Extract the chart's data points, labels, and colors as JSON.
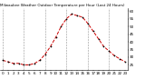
{
  "title": "Milwaukee Weather Outdoor Temperature per Hour (Last 24 Hours)",
  "hours": [
    0,
    1,
    2,
    3,
    4,
    5,
    6,
    7,
    8,
    9,
    10,
    11,
    12,
    13,
    14,
    15,
    16,
    17,
    18,
    19,
    20,
    21,
    22,
    23
  ],
  "temps": [
    28,
    27,
    26,
    26,
    25,
    25,
    26,
    28,
    32,
    37,
    43,
    50,
    55,
    58,
    57,
    56,
    52,
    47,
    42,
    37,
    34,
    31,
    29,
    27
  ],
  "line_color": "#cc0000",
  "marker_color": "#000000",
  "bg_color": "#ffffff",
  "grid_color": "#888888",
  "ylim_min": 22,
  "ylim_max": 62,
  "yticks": [
    25,
    30,
    35,
    40,
    45,
    50,
    55,
    60
  ],
  "title_fontsize": 3.0,
  "tick_fontsize": 3.0,
  "vgrid_positions": [
    0,
    4,
    8,
    12,
    16,
    20
  ]
}
